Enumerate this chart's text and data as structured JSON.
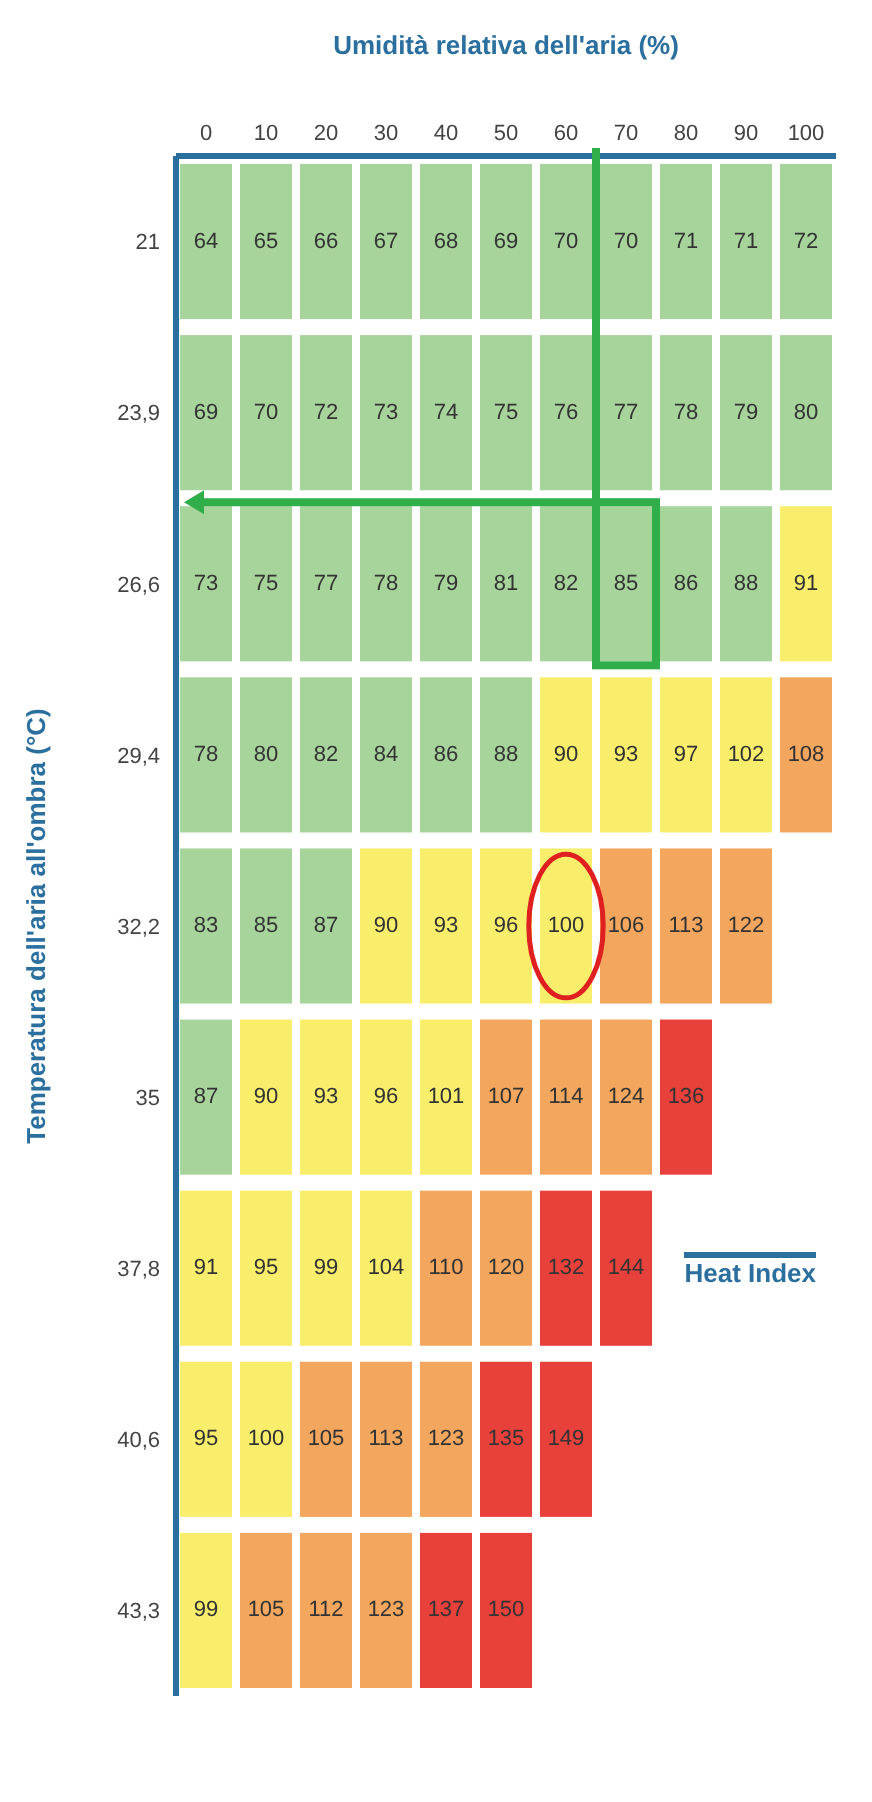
{
  "chart_data": {
    "type": "heatmap",
    "xlabel": "Umidità relativa dell'aria (%)",
    "ylabel": "Temperatura dell'aria all'ombra (°C)",
    "categories": [
      "0",
      "10",
      "20",
      "30",
      "40",
      "50",
      "60",
      "70",
      "80",
      "90",
      "100"
    ],
    "y_categories": [
      "21",
      "23,9",
      "26,6",
      "29,4",
      "32,2",
      "35",
      "37,8",
      "40,6",
      "43,3"
    ],
    "cells": [
      [
        64,
        65,
        66,
        67,
        68,
        69,
        70,
        70,
        71,
        71,
        72
      ],
      [
        69,
        70,
        72,
        73,
        74,
        75,
        76,
        77,
        78,
        79,
        80
      ],
      [
        73,
        75,
        77,
        78,
        79,
        81,
        82,
        85,
        86,
        88,
        91
      ],
      [
        78,
        80,
        82,
        84,
        86,
        88,
        90,
        93,
        97,
        102,
        108
      ],
      [
        83,
        85,
        87,
        90,
        93,
        96,
        100,
        106,
        113,
        122,
        null
      ],
      [
        87,
        90,
        93,
        96,
        101,
        107,
        114,
        124,
        136,
        null,
        null
      ],
      [
        91,
        95,
        99,
        104,
        110,
        120,
        132,
        144,
        null,
        null,
        null
      ],
      [
        95,
        100,
        105,
        113,
        123,
        135,
        149,
        null,
        null,
        null,
        null
      ],
      [
        99,
        105,
        112,
        123,
        137,
        150,
        null,
        null,
        null,
        null,
        null
      ]
    ],
    "colors": [
      [
        "#a6d49b",
        "#a6d49b",
        "#a6d49b",
        "#a6d49b",
        "#a6d49b",
        "#a6d49b",
        "#a6d49b",
        "#a6d49b",
        "#a6d49b",
        "#a6d49b",
        "#a6d49b"
      ],
      [
        "#a6d49b",
        "#a6d49b",
        "#a6d49b",
        "#a6d49b",
        "#a6d49b",
        "#a6d49b",
        "#a6d49b",
        "#a6d49b",
        "#a6d49b",
        "#a6d49b",
        "#a6d49b"
      ],
      [
        "#a6d49b",
        "#a6d49b",
        "#a6d49b",
        "#a6d49b",
        "#a6d49b",
        "#a6d49b",
        "#a6d49b",
        "#a6d49b",
        "#a6d49b",
        "#a6d49b",
        "#f8ee6b"
      ],
      [
        "#a6d49b",
        "#a6d49b",
        "#a6d49b",
        "#a6d49b",
        "#a6d49b",
        "#a6d49b",
        "#f8ee6b",
        "#f8ee6b",
        "#f8ee6b",
        "#f8ee6b",
        "#f3a65d"
      ],
      [
        "#a6d49b",
        "#a6d49b",
        "#a6d49b",
        "#f8ee6b",
        "#f8ee6b",
        "#f8ee6b",
        "#f8ee6b",
        "#f3a65d",
        "#f3a65d",
        "#f3a65d",
        null
      ],
      [
        "#a6d49b",
        "#f8ee6b",
        "#f8ee6b",
        "#f8ee6b",
        "#f8ee6b",
        "#f3a65d",
        "#f3a65d",
        "#f3a65d",
        "#e8413c",
        null,
        null
      ],
      [
        "#f8ee6b",
        "#f8ee6b",
        "#f8ee6b",
        "#f8ee6b",
        "#f3a65d",
        "#f3a65d",
        "#e8413c",
        "#e8413c",
        null,
        null,
        null
      ],
      [
        "#f8ee6b",
        "#f8ee6b",
        "#f3a65d",
        "#f3a65d",
        "#f3a65d",
        "#e8413c",
        "#e8413c",
        null,
        null,
        null,
        null
      ],
      [
        "#f8ee6b",
        "#f3a65d",
        "#f3a65d",
        "#f3a65d",
        "#e8413c",
        "#e8413c",
        null,
        null,
        null,
        null,
        null
      ]
    ],
    "data_labels": true,
    "annotations": [
      "Heat Index"
    ]
  }
}
